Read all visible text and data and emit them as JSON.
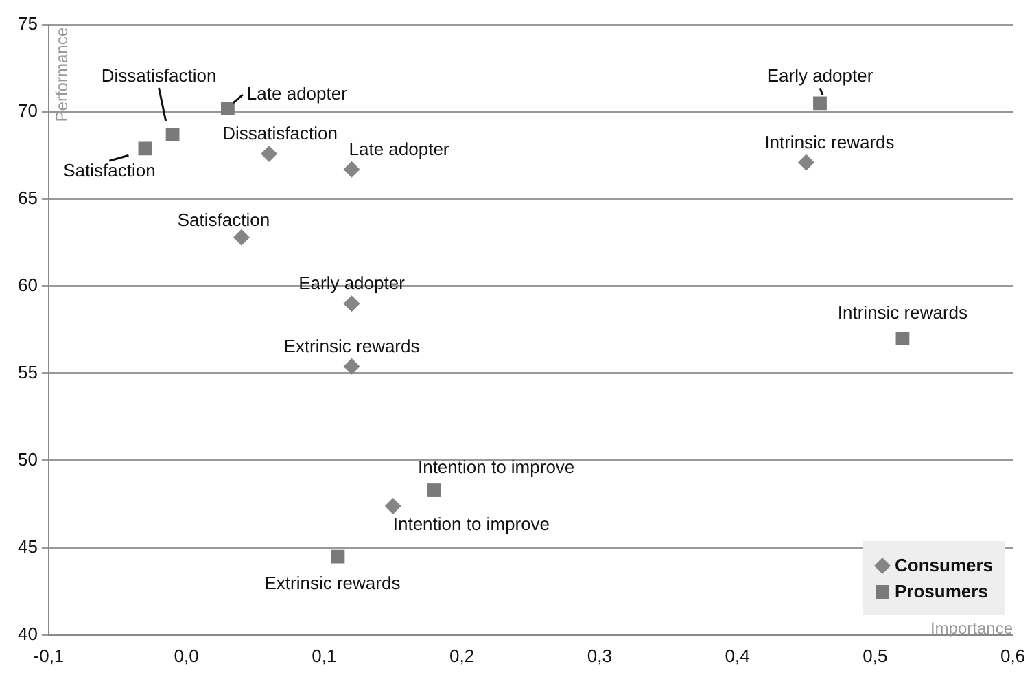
{
  "chart_data": {
    "type": "scatter",
    "xlabel": "Importance",
    "ylabel": "Performance",
    "xlim": [
      -0.1,
      0.6
    ],
    "ylim": [
      40,
      75
    ],
    "xticks": [
      {
        "value": -0.1,
        "label": "-0,1"
      },
      {
        "value": 0,
        "label": "0,0"
      },
      {
        "value": 0.1,
        "label": "0,1"
      },
      {
        "value": 0.2,
        "label": "0,2"
      },
      {
        "value": 0.3,
        "label": "0,3"
      },
      {
        "value": 0.4,
        "label": "0,4"
      },
      {
        "value": 0.5,
        "label": "0,5"
      },
      {
        "value": 0.6,
        "label": "0,6"
      }
    ],
    "yticks": [
      40,
      45,
      50,
      55,
      60,
      65,
      70,
      75
    ],
    "grid": "y",
    "legend": "bottom right",
    "series": [
      {
        "name": "Consumers",
        "color": "#858585",
        "marker": "diamond",
        "x": [
          0.06,
          0.12,
          0.04,
          0.12,
          0.12,
          0.15,
          0.45
        ],
        "values": [
          67.6,
          66.7,
          62.8,
          59.0,
          55.4,
          47.4,
          67.1
        ],
        "value_labels": [
          "Dissatisfaction",
          "Late adopter",
          "Satisfaction",
          "Early adopter",
          "Extrinsic rewards",
          "Intention to improve",
          "Intrinsic rewards"
        ]
      },
      {
        "name": "Prosumers",
        "color": "#7a7a7a",
        "marker": "square",
        "x": [
          -0.03,
          -0.01,
          0.03,
          0.46,
          0.52,
          0.18,
          0.11
        ],
        "values": [
          67.9,
          68.7,
          70.2,
          70.5,
          57.0,
          48.3,
          44.5
        ],
        "value_labels": [
          "Satisfaction",
          "Dissatisfaction",
          "Late adopter",
          "Early adopter",
          "Intrinsic rewards",
          "Intention to improve",
          "Extrinsic rewards"
        ]
      }
    ]
  }
}
